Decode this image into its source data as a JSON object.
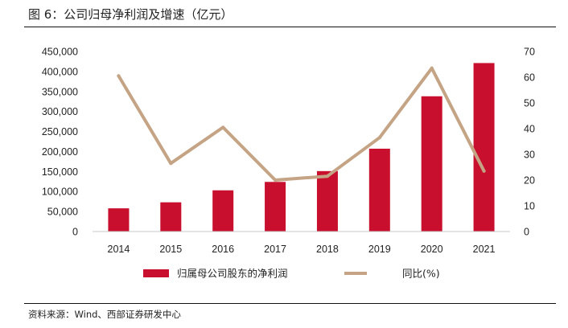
{
  "figure": {
    "title": "图 6：公司归母净利润及增速（亿元）",
    "source": "资料来源：Wind、西部证券研发中心"
  },
  "colors": {
    "bar": "#c8102e",
    "line": "#c4a484",
    "axis": "#c8c8c8",
    "text": "#222222"
  },
  "chart_data": {
    "type": "bar",
    "title": "",
    "xlabel": "",
    "ylabel": "",
    "categories": [
      "2014",
      "2015",
      "2016",
      "2017",
      "2018",
      "2019",
      "2020",
      "2021"
    ],
    "series": [
      {
        "name": "归属母公司股东的净利润",
        "type": "bar",
        "axis": "left",
        "values": [
          58000,
          73000,
          103000,
          124000,
          151000,
          207000,
          338000,
          421000
        ]
      },
      {
        "name": "同比(%)",
        "type": "line",
        "axis": "right",
        "values": [
          60.5,
          26.5,
          40.5,
          20.0,
          21.5,
          36.5,
          63.5,
          23.5
        ]
      }
    ],
    "ylim_left": [
      0,
      450000
    ],
    "yticks_left": [
      "0",
      "50,000",
      "100,000",
      "150,000",
      "200,000",
      "250,000",
      "300,000",
      "350,000",
      "400,000",
      "450,000"
    ],
    "ylim_right": [
      0,
      70
    ],
    "yticks_right": [
      "0",
      "10",
      "20",
      "30",
      "40",
      "50",
      "60",
      "70"
    ],
    "grid": false,
    "legend_position": "bottom"
  }
}
